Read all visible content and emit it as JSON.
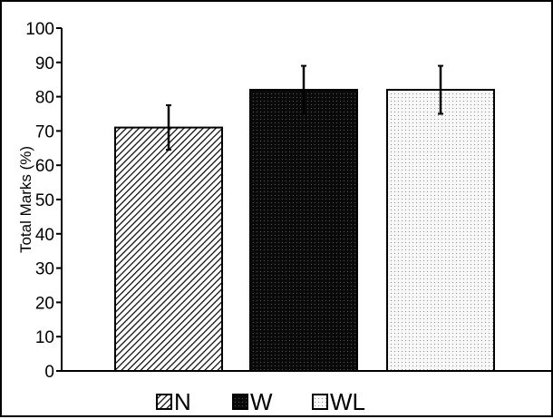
{
  "chart_data": {
    "type": "bar",
    "categories": [
      "N",
      "W",
      "WL"
    ],
    "values": [
      71,
      82,
      82
    ],
    "errors": [
      6.5,
      7,
      7
    ],
    "ylabel": "Total Marks (%)",
    "xlabel": "",
    "ylim": [
      0,
      100
    ],
    "yticks": [
      "0",
      "10",
      "20",
      "30",
      "40",
      "50",
      "60",
      "70",
      "80",
      "90",
      "100"
    ],
    "legend": {
      "placement": "bottom",
      "entries": [
        "N",
        "W",
        "WL"
      ]
    },
    "patterns": [
      "diagonal-hatch",
      "dark-dots",
      "light-dots"
    ],
    "colors": {
      "axis": "#000000",
      "bar_outline": "#000000",
      "dark_fill": "#0a0a0a",
      "light_fill": "#f2f2f2"
    },
    "grid": false
  }
}
